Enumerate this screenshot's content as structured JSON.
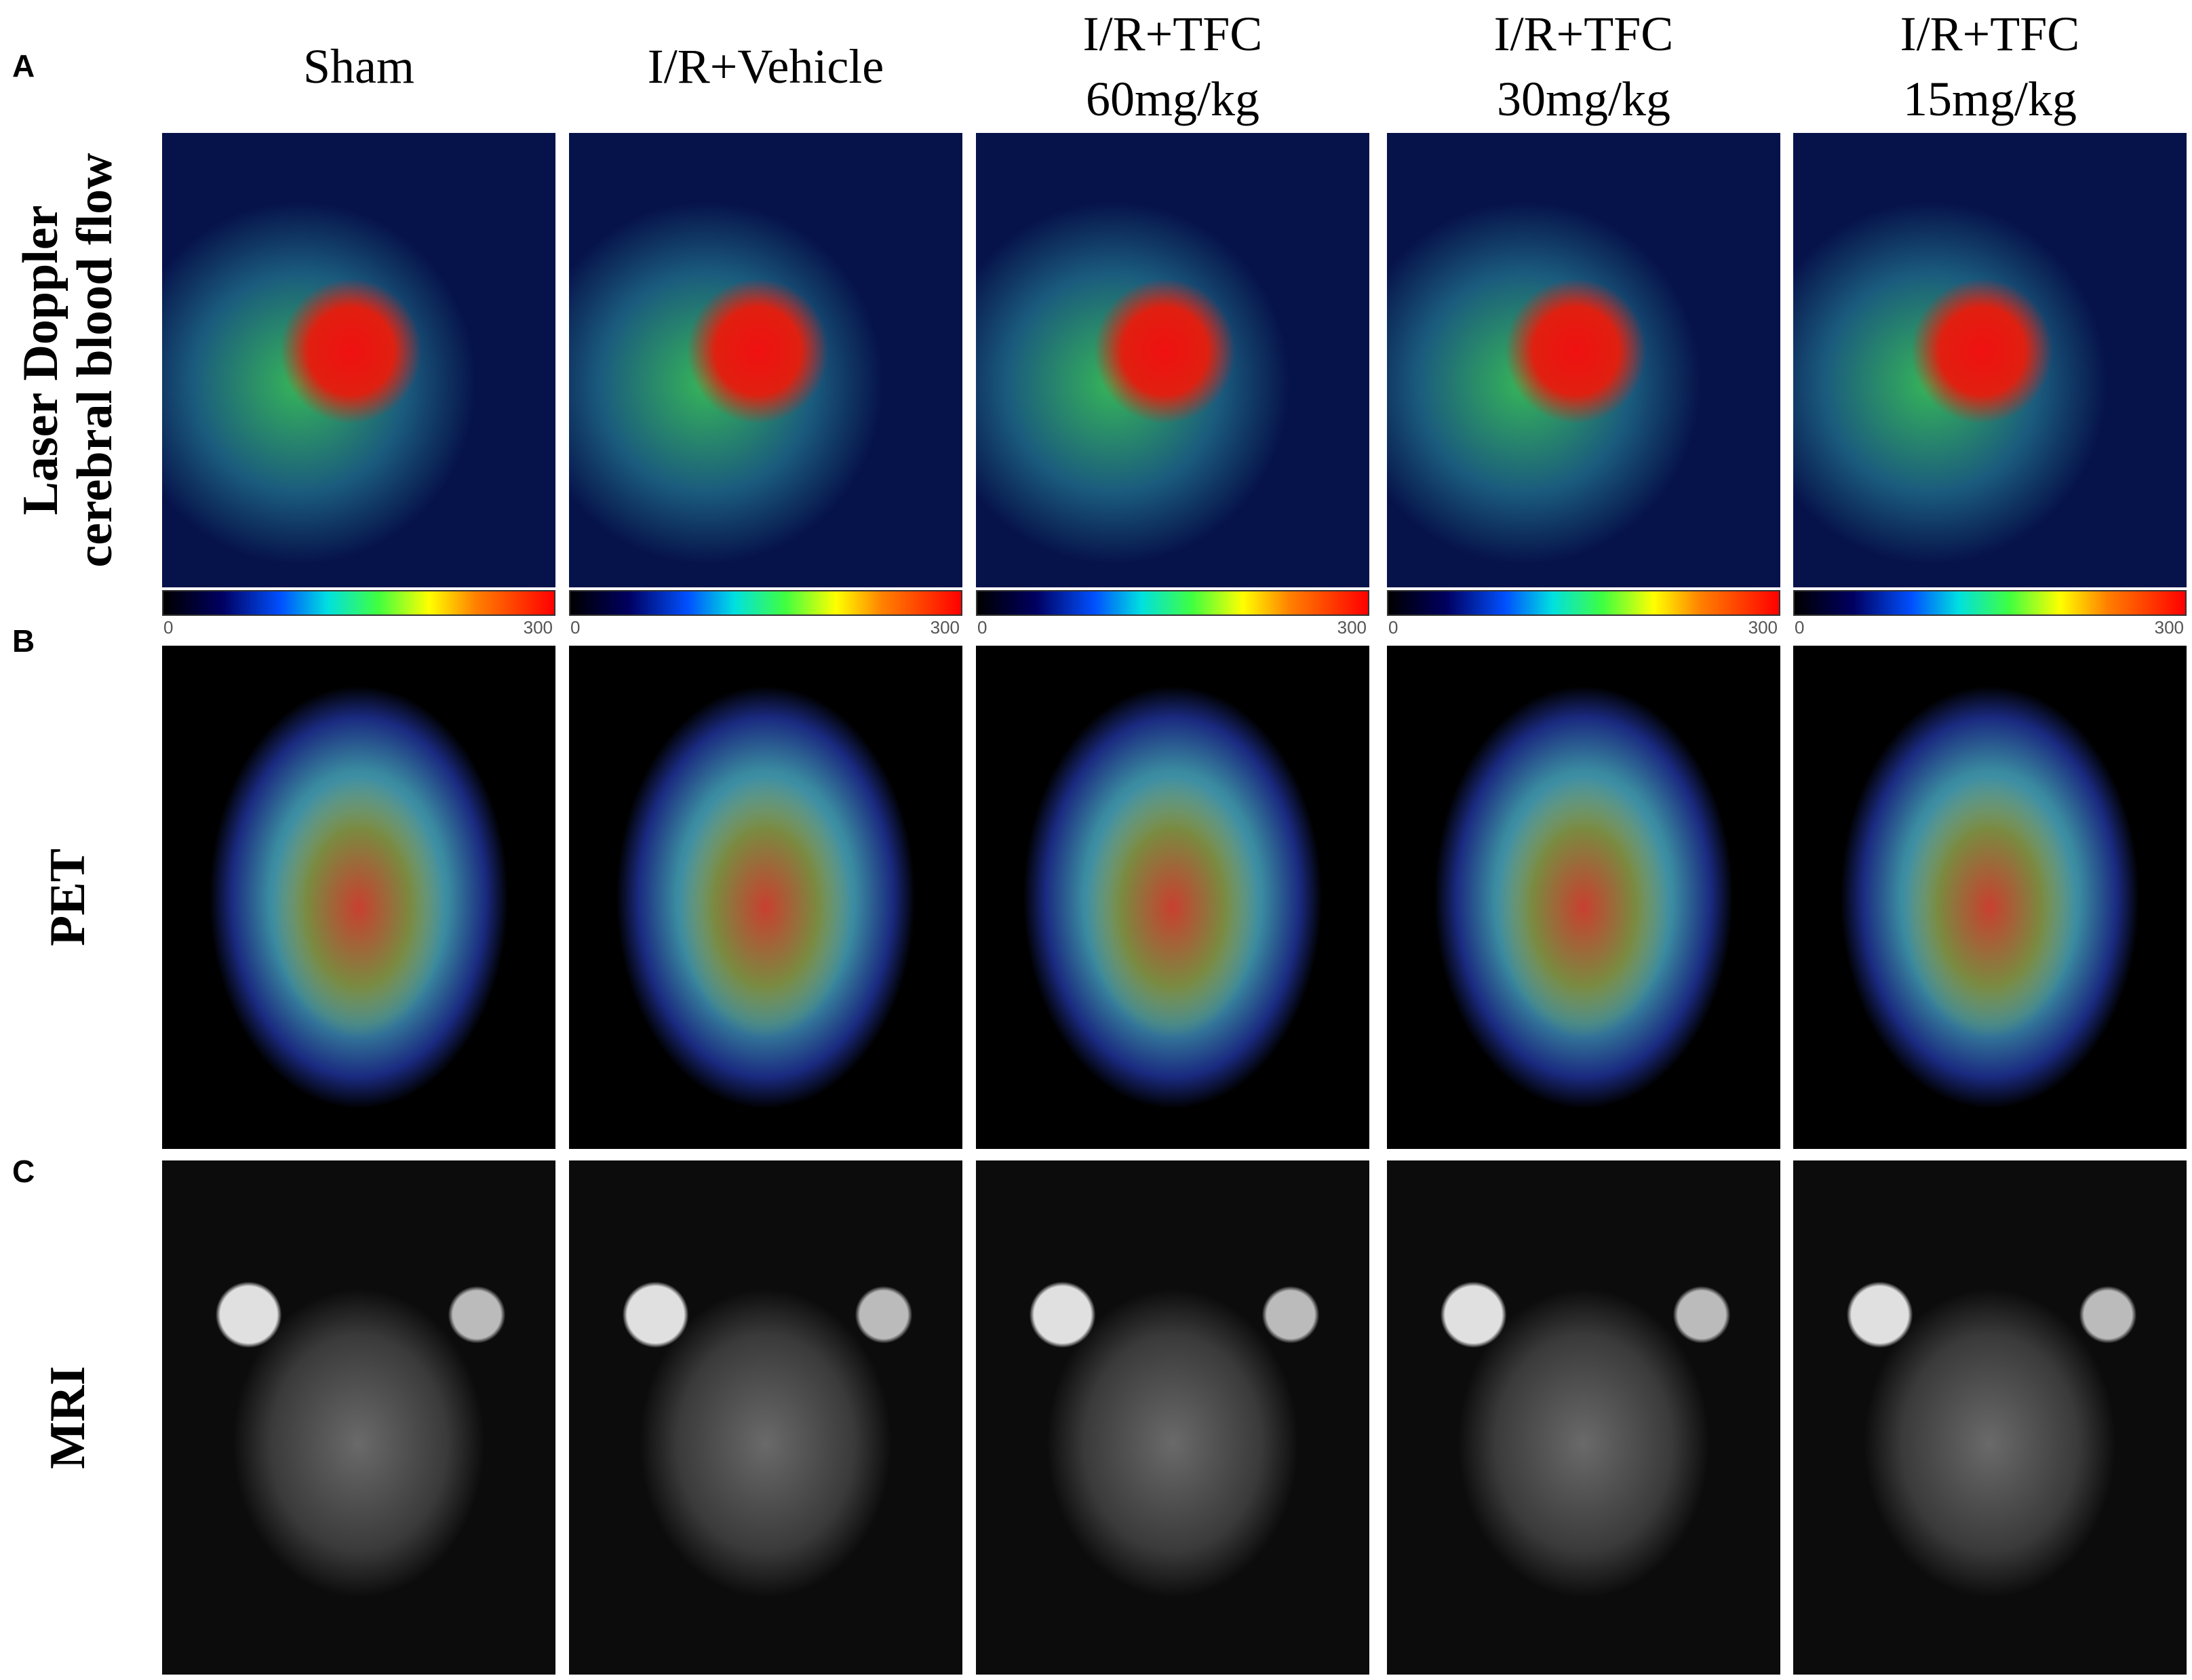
{
  "panel_labels": [
    "A",
    "B",
    "C"
  ],
  "columns": [
    {
      "lines": [
        "Sham"
      ]
    },
    {
      "lines": [
        "I/R+Vehicle"
      ]
    },
    {
      "lines": [
        "I/R+TFC",
        "60mg/kg"
      ]
    },
    {
      "lines": [
        "I/R+TFC",
        "30mg/kg"
      ]
    },
    {
      "lines": [
        "I/R+TFC",
        "15mg/kg"
      ]
    }
  ],
  "rows": [
    {
      "lines": [
        "Laser Doppler",
        "cerebral blood flow"
      ]
    },
    {
      "lines": [
        "PET"
      ]
    },
    {
      "lines": [
        "MRI"
      ]
    }
  ],
  "colorbars": [
    {
      "min": 0,
      "max": 300
    },
    {
      "min": 0,
      "max": 300
    },
    {
      "min": 0,
      "max": 300
    },
    {
      "min": 0,
      "max": 300
    },
    {
      "min": 0,
      "max": 300
    }
  ]
}
